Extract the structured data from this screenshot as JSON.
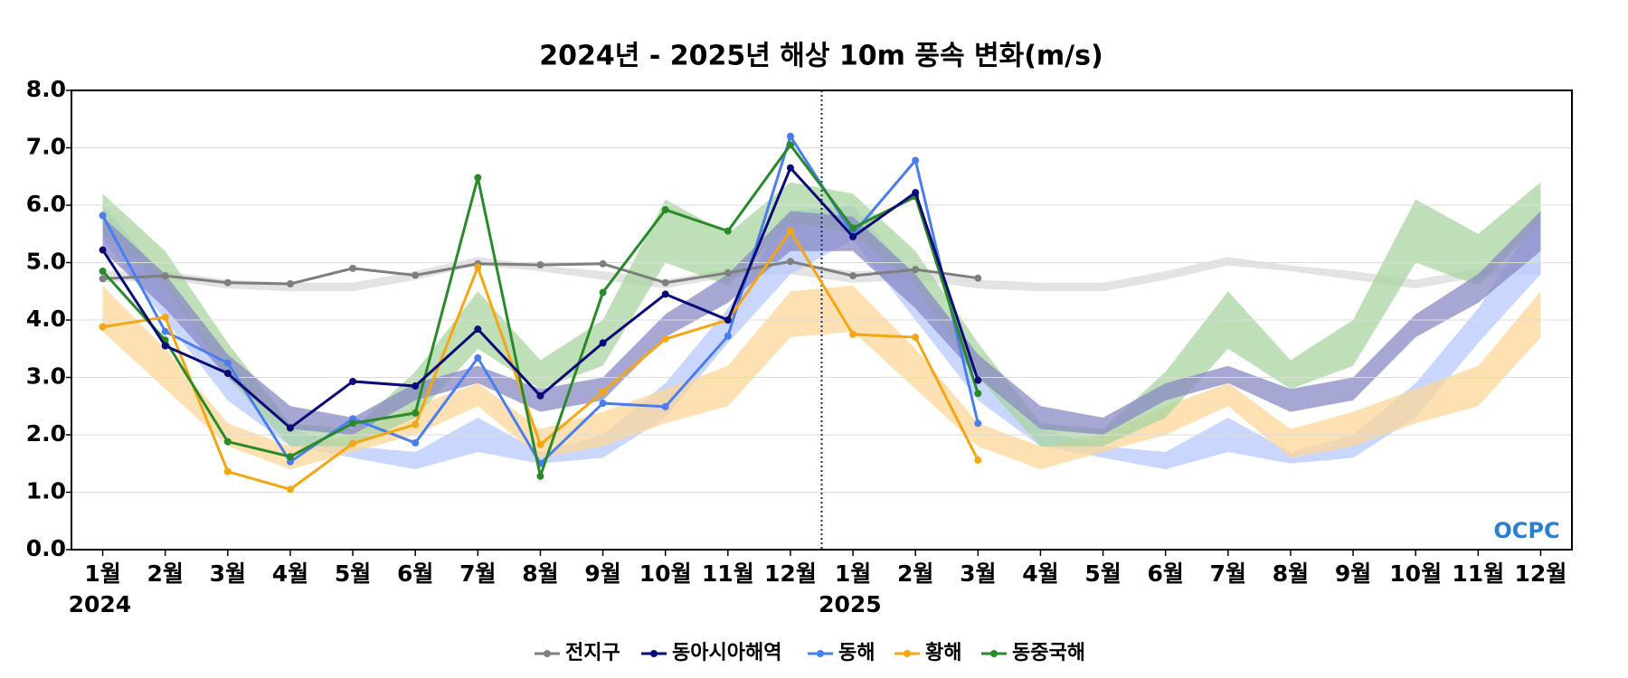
{
  "chart_data": {
    "type": "line",
    "title": "2024년 - 2025년 해상 10m 풍속 변화(m/s)",
    "categories": [
      "1월",
      "2월",
      "3월",
      "4월",
      "5월",
      "6월",
      "7월",
      "8월",
      "9월",
      "10월",
      "11월",
      "12월",
      "1월",
      "2월",
      "3월",
      "4월",
      "5월",
      "6월",
      "7월",
      "8월",
      "9월",
      "10월",
      "11월",
      "12월"
    ],
    "x_sublabels": [
      "2024",
      null,
      null,
      null,
      null,
      null,
      null,
      null,
      null,
      null,
      null,
      null,
      "2025",
      null,
      null,
      null,
      null,
      null,
      null,
      null,
      null,
      null,
      null,
      null
    ],
    "ylim": [
      0,
      8
    ],
    "yticks": [
      {
        "value": 0,
        "label": "0.0"
      },
      {
        "value": 1,
        "label": "1.0"
      },
      {
        "value": 2,
        "label": "2.0"
      },
      {
        "value": 3,
        "label": "3.0"
      },
      {
        "value": 4,
        "label": "4.0"
      },
      {
        "value": 5,
        "label": "5.0"
      },
      {
        "value": 6,
        "label": "6.0"
      },
      {
        "value": 7,
        "label": "7.0"
      },
      {
        "value": 8,
        "label": "8.0"
      }
    ],
    "grid": true,
    "legend": "bottom",
    "logo": "OCPC",
    "series": [
      {
        "name": "전지구",
        "color": "#7f7f7f",
        "band_color": "#d9d9d9",
        "values": [
          4.72,
          4.77,
          4.65,
          4.63,
          4.9,
          4.78,
          4.98,
          4.96,
          4.98,
          4.65,
          4.82,
          5.02,
          4.77,
          4.88,
          4.73,
          null,
          null,
          null,
          null,
          null,
          null,
          null,
          null,
          null
        ],
        "band_low": [
          4.65,
          4.7,
          4.55,
          4.5,
          4.5,
          4.7,
          4.95,
          4.85,
          4.7,
          4.55,
          4.75,
          4.8
        ],
        "band_high": [
          4.85,
          4.85,
          4.7,
          4.65,
          4.65,
          4.85,
          5.1,
          4.95,
          4.85,
          4.7,
          4.9,
          5.0
        ]
      },
      {
        "name": "동해",
        "color": "#4a7ef0",
        "band_color": "#b7c9ff",
        "values": [
          5.82,
          3.8,
          3.25,
          1.53,
          2.28,
          1.86,
          3.34,
          1.5,
          2.55,
          2.49,
          3.72,
          7.2,
          5.5,
          6.78,
          2.2,
          null,
          null,
          null,
          null,
          null,
          null,
          null,
          null,
          null
        ],
        "band_low": [
          5.4,
          4.0,
          2.6,
          1.8,
          1.6,
          1.4,
          1.7,
          1.5,
          1.6,
          2.3,
          3.6,
          4.8
        ],
        "band_high": [
          6.0,
          4.7,
          3.1,
          2.1,
          1.8,
          1.7,
          2.3,
          1.7,
          2.0,
          2.9,
          4.2,
          5.9
        ]
      },
      {
        "name": "황해",
        "color": "#f5a614",
        "band_color": "#fcd79a",
        "values": [
          3.88,
          4.05,
          1.36,
          1.05,
          1.85,
          2.18,
          4.92,
          1.83,
          2.75,
          3.67,
          4.0,
          5.55,
          3.75,
          3.7,
          1.56,
          null,
          null,
          null,
          null,
          null,
          null,
          null,
          null,
          null
        ],
        "band_low": [
          3.8,
          2.8,
          1.8,
          1.4,
          1.7,
          2.0,
          2.5,
          1.6,
          1.8,
          2.2,
          2.5,
          3.7
        ],
        "band_high": [
          4.6,
          3.5,
          2.2,
          1.8,
          2.0,
          2.5,
          2.9,
          2.1,
          2.4,
          2.8,
          3.2,
          4.5
        ]
      },
      {
        "name": "동중국해",
        "color": "#2a8a2a",
        "band_color": "#a8d4a0",
        "values": [
          4.85,
          3.65,
          1.88,
          1.62,
          2.2,
          2.38,
          6.48,
          1.28,
          4.48,
          5.92,
          5.55,
          7.05,
          5.6,
          6.15,
          2.72,
          null,
          null,
          null,
          null,
          null,
          null,
          null,
          null,
          null
        ],
        "band_low": [
          5.5,
          4.6,
          3.0,
          1.8,
          1.8,
          2.3,
          3.5,
          2.8,
          3.2,
          5.0,
          4.6,
          5.7
        ],
        "band_high": [
          6.2,
          5.2,
          3.6,
          2.2,
          2.1,
          3.1,
          4.5,
          3.3,
          4.0,
          6.1,
          5.5,
          6.4
        ]
      },
      {
        "name": "동아시아해역",
        "color": "#0b0b78",
        "band_color": "#8a8ac4",
        "values": [
          5.22,
          3.55,
          3.07,
          2.12,
          2.93,
          2.85,
          3.84,
          2.68,
          3.6,
          4.45,
          4.0,
          6.65,
          5.45,
          6.22,
          2.95,
          null,
          null,
          null,
          null,
          null,
          null,
          null,
          null,
          null
        ],
        "band_low": [
          5.2,
          4.2,
          3.0,
          2.1,
          2.0,
          2.6,
          2.9,
          2.4,
          2.6,
          3.7,
          4.3,
          5.2
        ],
        "band_high": [
          5.8,
          4.8,
          3.4,
          2.5,
          2.3,
          2.9,
          3.2,
          2.8,
          3.0,
          4.1,
          4.8,
          5.9
        ]
      }
    ],
    "legend_order": [
      0,
      4,
      1,
      2,
      3
    ]
  }
}
